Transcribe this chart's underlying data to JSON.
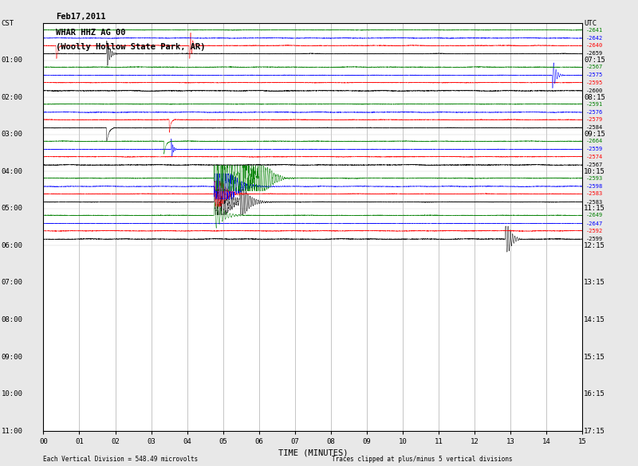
{
  "title_line1": "Feb17,2011",
  "title_line2": "WHAR HHZ AG 00",
  "title_line3": "(Woolly Hollow State Park, AR)",
  "left_label": "CST",
  "right_label": "UTC",
  "xlabel": "TIME (MINUTES)",
  "xlabel_note_left": "Each Vertical Division = 548.49 microvolts",
  "xlabel_note_right": "Traces clipped at plus/minus 5 vertical divisions",
  "bg_color": "#e8e8e8",
  "plot_bg_color": "#ffffff",
  "grid_color": "#bbbbbb",
  "left_time_labels": [
    "CST",
    "01:00",
    "02:00",
    "03:00",
    "04:00",
    "05:00",
    "06:00",
    "07:00",
    "08:00",
    "09:00",
    "10:00",
    "11:00"
  ],
  "right_time_labels": [
    "UTC",
    "07:15",
    "08:15",
    "09:15",
    "10:15",
    "11:15",
    "12:15",
    "13:15",
    "14:15",
    "15:15",
    "16:15",
    "17:15"
  ],
  "x_ticks": [
    0,
    1,
    2,
    3,
    4,
    5,
    6,
    7,
    8,
    9,
    10,
    11,
    12,
    13,
    14,
    15
  ],
  "colors": [
    "black",
    "red",
    "blue",
    "green"
  ],
  "n_active_rows": 6,
  "n_empty_rows": 5,
  "n_channels": 4,
  "total_rows": 11,
  "right_values_row0": [
    "-2659",
    "-2640",
    "-2642",
    "-2641"
  ],
  "right_values_row1": [
    "-2600",
    "-2595",
    "-2575",
    "-2567"
  ],
  "right_values_row2": [
    "-2584",
    "-2579",
    "-2576",
    "-2591"
  ],
  "right_values_row3": [
    "-2567",
    "-2574",
    "-2559",
    "-2664"
  ],
  "right_values_row4": [
    "-2583",
    "-2583",
    "-2598",
    "-2593"
  ],
  "right_values_row5": [
    "-2599",
    "-2592",
    "-2647",
    "-2649"
  ]
}
